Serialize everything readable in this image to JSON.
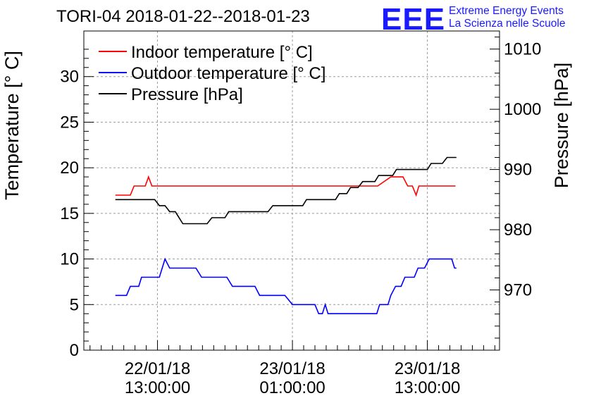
{
  "title": "TORI-04 2018-01-22--2018-01-23",
  "logo": {
    "mark": "EEE",
    "line1": "Extreme Energy Events",
    "line2": "La Scienza nelle Scuole",
    "color": "#1a1aff"
  },
  "chart_data": {
    "type": "line",
    "title": "TORI-04 2018-01-22--2018-01-23",
    "ylabel": "Temperature [° C]",
    "y2label": "Pressure [hPa]",
    "ylim": [
      0,
      35
    ],
    "y2lim": [
      960,
      1013
    ],
    "yticks": [
      0,
      5,
      10,
      15,
      20,
      25,
      30
    ],
    "y2ticks": [
      970,
      980,
      990,
      1000,
      1010
    ],
    "xlim": [
      "2018-01-22 06:27",
      "2018-01-23 19:25"
    ],
    "xticks": [
      {
        "t": "2018-01-22 13:00",
        "line1": "22/01/18",
        "line2": "13:00:00"
      },
      {
        "t": "2018-01-23 01:00",
        "line1": "23/01/18",
        "line2": "01:00:00"
      },
      {
        "t": "2018-01-23 13:00",
        "line1": "23/01/18",
        "line2": "13:00:00"
      }
    ],
    "grid": true,
    "legend_position": "top-left",
    "series": [
      {
        "name": "Indoor temperature [° C]",
        "axis": "left",
        "color": "#ff0000",
        "points": [
          [
            "2018-01-22 09:15",
            17
          ],
          [
            "2018-01-22 10:35",
            17
          ],
          [
            "2018-01-22 10:55",
            18
          ],
          [
            "2018-01-22 11:55",
            18
          ],
          [
            "2018-01-22 12:12",
            19
          ],
          [
            "2018-01-22 12:30",
            18
          ],
          [
            "2018-01-23 08:35",
            18
          ],
          [
            "2018-01-23 09:45",
            19
          ],
          [
            "2018-01-23 10:50",
            19
          ],
          [
            "2018-01-23 11:15",
            18
          ],
          [
            "2018-01-23 11:40",
            18
          ],
          [
            "2018-01-23 12:00",
            17
          ],
          [
            "2018-01-23 12:15",
            18
          ],
          [
            "2018-01-23 15:30",
            18
          ]
        ]
      },
      {
        "name": "Outdoor temperature [° C]",
        "axis": "left",
        "color": "#0000ff",
        "points": [
          [
            "2018-01-22 09:15",
            6
          ],
          [
            "2018-01-22 10:15",
            6
          ],
          [
            "2018-01-22 10:35",
            7
          ],
          [
            "2018-01-22 11:20",
            7
          ],
          [
            "2018-01-22 11:35",
            8
          ],
          [
            "2018-01-22 13:10",
            8
          ],
          [
            "2018-01-22 13:40",
            10
          ],
          [
            "2018-01-22 14:05",
            9
          ],
          [
            "2018-01-22 16:25",
            9
          ],
          [
            "2018-01-22 16:55",
            8
          ],
          [
            "2018-01-22 19:10",
            8
          ],
          [
            "2018-01-22 19:40",
            7
          ],
          [
            "2018-01-22 21:40",
            7
          ],
          [
            "2018-01-22 22:05",
            6
          ],
          [
            "2018-01-23 00:20",
            6
          ],
          [
            "2018-01-23 01:00",
            5
          ],
          [
            "2018-01-23 03:00",
            5
          ],
          [
            "2018-01-23 03:20",
            4
          ],
          [
            "2018-01-23 03:40",
            4
          ],
          [
            "2018-01-23 03:55",
            5
          ],
          [
            "2018-01-23 04:10",
            4
          ],
          [
            "2018-01-23 08:30",
            4
          ],
          [
            "2018-01-23 08:45",
            5
          ],
          [
            "2018-01-23 09:30",
            5
          ],
          [
            "2018-01-23 09:45",
            6
          ],
          [
            "2018-01-23 10:10",
            7
          ],
          [
            "2018-01-23 10:40",
            7
          ],
          [
            "2018-01-23 11:00",
            8
          ],
          [
            "2018-01-23 11:50",
            8
          ],
          [
            "2018-01-23 12:10",
            9
          ],
          [
            "2018-01-23 12:45",
            9
          ],
          [
            "2018-01-23 13:10",
            10
          ],
          [
            "2018-01-23 15:10",
            10
          ],
          [
            "2018-01-23 15:25",
            9
          ],
          [
            "2018-01-23 15:35",
            9
          ]
        ]
      },
      {
        "name": "Pressure [hPa]",
        "axis": "right",
        "color": "#000000",
        "points": [
          [
            "2018-01-22 09:15",
            985
          ],
          [
            "2018-01-22 12:45",
            985
          ],
          [
            "2018-01-22 13:10",
            984
          ],
          [
            "2018-01-22 13:40",
            984
          ],
          [
            "2018-01-22 14:05",
            983
          ],
          [
            "2018-01-22 14:35",
            983
          ],
          [
            "2018-01-22 15:15",
            981
          ],
          [
            "2018-01-22 17:25",
            981
          ],
          [
            "2018-01-22 17:50",
            982
          ],
          [
            "2018-01-22 19:00",
            982
          ],
          [
            "2018-01-22 19:20",
            983
          ],
          [
            "2018-01-22 22:50",
            983
          ],
          [
            "2018-01-22 23:15",
            984
          ],
          [
            "2018-01-23 01:55",
            984
          ],
          [
            "2018-01-23 02:15",
            985
          ],
          [
            "2018-01-23 04:50",
            985
          ],
          [
            "2018-01-23 05:10",
            986
          ],
          [
            "2018-01-23 05:50",
            986
          ],
          [
            "2018-01-23 06:10",
            987
          ],
          [
            "2018-01-23 06:50",
            987
          ],
          [
            "2018-01-23 07:15",
            988
          ],
          [
            "2018-01-23 08:20",
            988
          ],
          [
            "2018-01-23 08:40",
            989
          ],
          [
            "2018-01-23 09:55",
            989
          ],
          [
            "2018-01-23 10:15",
            990
          ],
          [
            "2018-01-23 13:00",
            990
          ],
          [
            "2018-01-23 13:20",
            991
          ],
          [
            "2018-01-23 14:20",
            991
          ],
          [
            "2018-01-23 14:45",
            992
          ],
          [
            "2018-01-23 15:35",
            992
          ]
        ]
      }
    ]
  }
}
